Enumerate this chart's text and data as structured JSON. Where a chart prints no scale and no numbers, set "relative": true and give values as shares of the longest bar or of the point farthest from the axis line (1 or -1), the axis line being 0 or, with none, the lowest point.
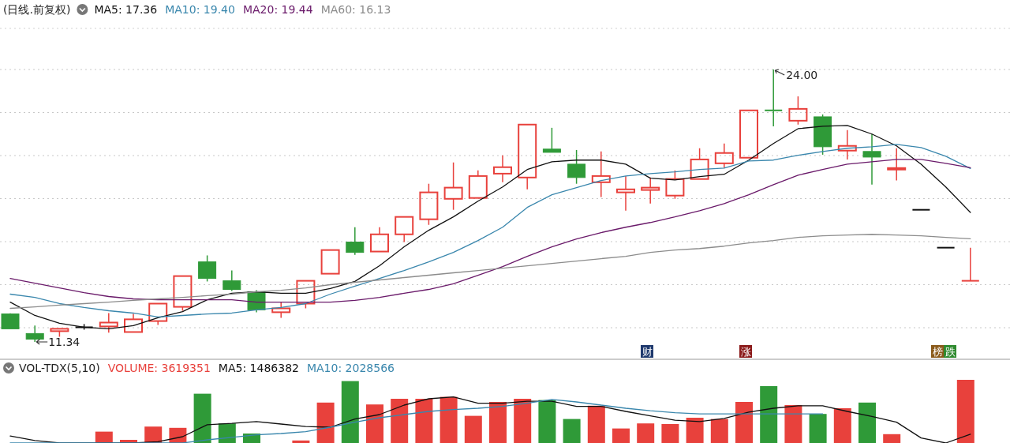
{
  "chart_data": [
    {
      "type": "candlestick",
      "title": "(日线.前复权)",
      "categories": [
        null,
        null,
        null,
        null,
        null,
        null,
        null,
        null,
        null,
        null,
        null,
        null,
        null,
        null,
        null,
        null,
        null,
        null,
        null,
        null,
        null,
        null,
        null,
        null,
        null,
        null,
        null,
        null,
        null,
        null,
        null,
        null,
        null,
        null,
        null,
        null,
        null,
        null,
        null,
        null
      ],
      "ohlc": [
        [
          12.64,
          12.67,
          11.95,
          11.95
        ],
        [
          11.73,
          12.1,
          11.34,
          11.47
        ],
        [
          11.84,
          11.95,
          11.58,
          11.95
        ],
        [
          12.02,
          12.17,
          11.91,
          12.02
        ],
        [
          12.06,
          12.68,
          11.77,
          12.24
        ],
        [
          11.8,
          12.64,
          11.8,
          12.39
        ],
        [
          12.31,
          13.12,
          12.13,
          13.12
        ],
        [
          12.97,
          14.4,
          12.79,
          14.4
        ],
        [
          15.06,
          15.36,
          14.15,
          14.29
        ],
        [
          14.18,
          14.66,
          13.71,
          13.78
        ],
        [
          13.67,
          13.74,
          12.72,
          12.83
        ],
        [
          12.72,
          13.19,
          12.46,
          12.9
        ],
        [
          13.12,
          14.18,
          12.9,
          14.18
        ],
        [
          14.51,
          15.61,
          14.51,
          15.61
        ],
        [
          15.98,
          16.67,
          15.39,
          15.5
        ],
        [
          15.54,
          16.67,
          15.54,
          16.34
        ],
        [
          16.34,
          17.15,
          15.98,
          17.15
        ],
        [
          17.04,
          18.69,
          16.78,
          18.29
        ],
        [
          17.99,
          19.68,
          17.48,
          18.51
        ],
        [
          18.03,
          19.31,
          18.03,
          19.05
        ],
        [
          19.16,
          20.01,
          18.76,
          19.46
        ],
        [
          18.98,
          21.44,
          18.43,
          21.44
        ],
        [
          20.3,
          21.29,
          20.15,
          20.15
        ],
        [
          19.6,
          20.26,
          18.69,
          18.98
        ],
        [
          18.76,
          20.19,
          18.07,
          19.05
        ],
        [
          18.29,
          19.05,
          17.44,
          18.43
        ],
        [
          18.4,
          18.98,
          17.77,
          18.51
        ],
        [
          18.14,
          19.31,
          17.99,
          18.91
        ],
        [
          18.91,
          20.34,
          18.91,
          19.82
        ],
        [
          19.64,
          20.56,
          19.42,
          20.12
        ],
        [
          19.9,
          22.1,
          19.9,
          22.1
        ],
        [
          22.1,
          24.0,
          21.36,
          22.07
        ],
        [
          21.62,
          22.75,
          21.44,
          22.17
        ],
        [
          21.8,
          21.91,
          20.04,
          20.41
        ],
        [
          20.23,
          21.18,
          19.82,
          20.45
        ],
        [
          20.19,
          21.0,
          18.65,
          19.93
        ],
        [
          19.35,
          20.34,
          18.84,
          19.42
        ],
        [
          17.48,
          17.48,
          17.48,
          17.48
        ],
        [
          15.72,
          15.72,
          15.72,
          15.72
        ],
        [
          14.18,
          15.72,
          14.18,
          14.18
        ]
      ],
      "colors": [
        "#2f9a38",
        "#2f9a38",
        "#e8413c",
        "#111111",
        "#e8413c",
        "#e8413c",
        "#e8413c",
        "#e8413c",
        "#2f9a38",
        "#2f9a38",
        "#2f9a38",
        "#e8413c",
        "#e8413c",
        "#e8413c",
        "#2f9a38",
        "#e8413c",
        "#e8413c",
        "#e8413c",
        "#e8413c",
        "#e8413c",
        "#e8413c",
        "#e8413c",
        "#2f9a38",
        "#2f9a38",
        "#e8413c",
        "#e8413c",
        "#e8413c",
        "#e8413c",
        "#e8413c",
        "#e8413c",
        "#e8413c",
        "#2f9a38",
        "#e8413c",
        "#2f9a38",
        "#e8413c",
        "#2f9a38",
        "#e8413c",
        "#111111",
        "#111111",
        "#e8413c"
      ],
      "series": [
        {
          "name": "MA5: 17.36",
          "type": "line",
          "color": "#111111",
          "values": [
            13.19,
            12.57,
            12.21,
            12.02,
            11.95,
            12.1,
            12.46,
            12.75,
            13.3,
            13.6,
            13.67,
            13.6,
            13.6,
            13.82,
            14.15,
            14.88,
            15.76,
            16.53,
            17.15,
            17.88,
            18.54,
            19.35,
            19.71,
            19.79,
            19.79,
            19.6,
            18.95,
            18.87,
            19.02,
            19.13,
            19.79,
            20.56,
            21.25,
            21.36,
            21.4,
            21.0,
            20.45,
            19.6,
            18.54,
            17.36
          ]
        },
        {
          "name": "MA10: 19.40",
          "type": "line",
          "color": "#3a87ad",
          "values": [
            13.56,
            13.41,
            13.12,
            12.94,
            12.79,
            12.68,
            12.5,
            12.57,
            12.64,
            12.68,
            12.83,
            12.94,
            13.12,
            13.56,
            13.93,
            14.29,
            14.66,
            15.06,
            15.5,
            16.05,
            16.67,
            17.59,
            18.18,
            18.51,
            18.84,
            19.05,
            19.16,
            19.24,
            19.35,
            19.42,
            19.75,
            19.79,
            20.01,
            20.19,
            20.34,
            20.41,
            20.52,
            20.37,
            19.97,
            19.4
          ]
        },
        {
          "name": "MA20: 19.44",
          "type": "line",
          "color": "#6a1a6a",
          "values": [
            14.29,
            14.07,
            13.85,
            13.63,
            13.45,
            13.34,
            13.3,
            13.3,
            13.3,
            13.3,
            13.19,
            13.19,
            13.19,
            13.19,
            13.27,
            13.41,
            13.6,
            13.78,
            14.04,
            14.44,
            14.84,
            15.32,
            15.76,
            16.12,
            16.42,
            16.67,
            16.89,
            17.15,
            17.44,
            17.77,
            18.18,
            18.65,
            19.09,
            19.35,
            19.6,
            19.71,
            19.82,
            19.82,
            19.64,
            19.44
          ]
        },
        {
          "name": "MA60: 16.13",
          "type": "line",
          "color": "#8c8c8c",
          "values": [
            12.9,
            12.97,
            13.05,
            13.12,
            13.19,
            13.27,
            13.34,
            13.41,
            13.49,
            13.56,
            13.67,
            13.74,
            13.85,
            14.0,
            14.11,
            14.22,
            14.33,
            14.44,
            14.55,
            14.66,
            14.77,
            14.88,
            14.99,
            15.1,
            15.21,
            15.32,
            15.5,
            15.61,
            15.68,
            15.79,
            15.94,
            16.05,
            16.2,
            16.27,
            16.31,
            16.34,
            16.31,
            16.27,
            16.2,
            16.13
          ]
        }
      ],
      "annotations": [
        "24.00",
        "11.34",
        "财",
        "涨",
        "榜",
        "跌"
      ],
      "yticks": [
        {
          "value": 12,
          "label": null
        },
        {
          "value": 14,
          "label": null
        },
        {
          "value": 16,
          "label": null
        },
        {
          "value": 18,
          "label": null
        },
        {
          "value": 20,
          "label": null
        },
        {
          "value": 22,
          "label": null
        },
        {
          "value": 24,
          "label": null
        }
      ],
      "grid": "y"
    },
    {
      "type": "bar",
      "title": "VOL-TDX(5,10)",
      "relative": true,
      "categories": [
        null,
        null,
        null,
        null,
        null,
        null,
        null,
        null,
        null,
        null,
        null,
        null,
        null,
        null,
        null,
        null,
        null,
        null,
        null,
        null,
        null,
        null,
        null,
        null,
        null,
        null,
        null,
        null,
        null,
        null,
        null,
        null,
        null,
        null,
        null,
        null,
        null,
        null,
        null,
        null
      ],
      "series": [
        {
          "name": "VOLUME: 3619351",
          "color": "#e8413c",
          "values": [
            0,
            0,
            0,
            0,
            0.18,
            0.05,
            0.26,
            0.24,
            0.78,
            0.31,
            0.15,
            0,
            0.04,
            0.64,
            0.98,
            0.61,
            0.7,
            0.7,
            0.73,
            0.43,
            0.65,
            0.7,
            0.68,
            0.38,
            0.59,
            0.23,
            0.31,
            0.3,
            0.4,
            0.38,
            0.65,
            0.9,
            0.6,
            0.46,
            0.55,
            0.64,
            0.14,
            0,
            0,
            1
          ],
          "colors": [
            "#2f9a38",
            "#2f9a38",
            "#e8413c",
            "#111111",
            "#e8413c",
            "#e8413c",
            "#e8413c",
            "#e8413c",
            "#2f9a38",
            "#2f9a38",
            "#2f9a38",
            "#e8413c",
            "#e8413c",
            "#e8413c",
            "#2f9a38",
            "#e8413c",
            "#e8413c",
            "#e8413c",
            "#e8413c",
            "#e8413c",
            "#e8413c",
            "#e8413c",
            "#2f9a38",
            "#2f9a38",
            "#e8413c",
            "#e8413c",
            "#e8413c",
            "#e8413c",
            "#e8413c",
            "#e8413c",
            "#e8413c",
            "#2f9a38",
            "#e8413c",
            "#2f9a38",
            "#e8413c",
            "#2f9a38",
            "#e8413c",
            "#111111",
            "#111111",
            "#e8413c"
          ]
        },
        {
          "name": "MA5: 1486382",
          "type": "line",
          "color": "#111111",
          "values": [
            0.11,
            0.04,
            0,
            0,
            0,
            0,
            0.02,
            0.1,
            0.29,
            0.31,
            0.34,
            0.3,
            0.26,
            0.25,
            0.38,
            0.45,
            0.6,
            0.7,
            0.73,
            0.63,
            0.63,
            0.66,
            0.66,
            0.58,
            0.58,
            0.5,
            0.43,
            0.36,
            0.34,
            0.39,
            0.49,
            0.55,
            0.59,
            0.59,
            0.5,
            0.42,
            0.33,
            0.08,
            0,
            0.14
          ]
        },
        {
          "name": "MA10: 2028566",
          "type": "line",
          "color": "#3a87ad",
          "values": [
            0,
            0,
            0,
            0,
            0,
            0,
            0,
            0,
            0.05,
            0.09,
            0.13,
            0.15,
            0.18,
            0.25,
            0.33,
            0.4,
            0.45,
            0.5,
            0.53,
            0.55,
            0.58,
            0.63,
            0.69,
            0.65,
            0.6,
            0.55,
            0.51,
            0.48,
            0.46,
            0.46,
            0.46,
            0.46,
            0.46,
            0.46,
            null,
            null,
            null,
            null,
            null,
            null
          ]
        }
      ]
    }
  ]
}
